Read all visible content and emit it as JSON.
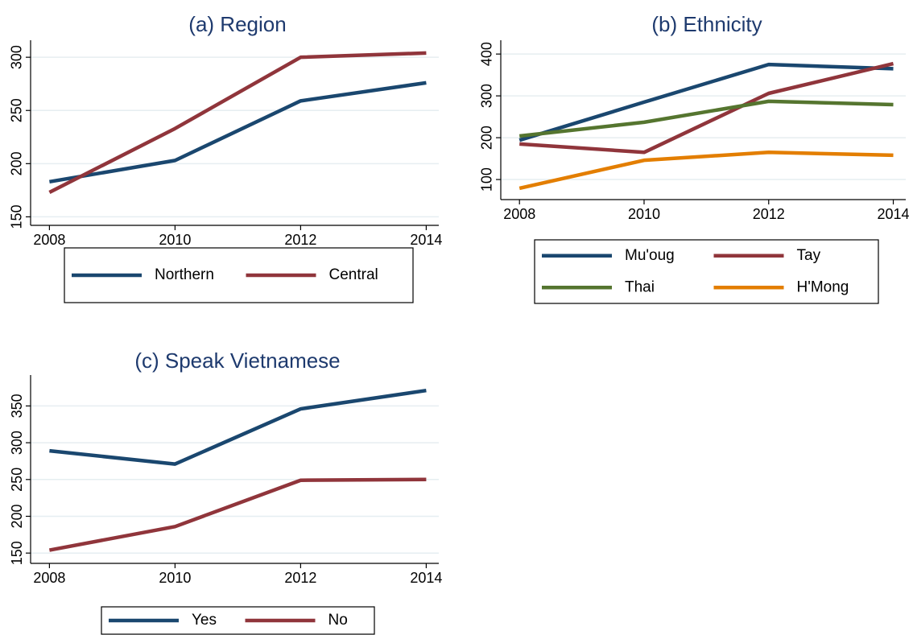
{
  "chart_data": [
    {
      "type": "line",
      "title": "(a) Region",
      "x": [
        2008,
        2010,
        2012,
        2014
      ],
      "series": [
        {
          "name": "Northern",
          "color": "#1a476f",
          "values": [
            183,
            203,
            259,
            276
          ]
        },
        {
          "name": "Central",
          "color": "#90353b",
          "values": [
            173,
            233,
            300,
            304
          ]
        }
      ],
      "xlim": [
        2007.7,
        2014.2
      ],
      "xticks": [
        2008,
        2010,
        2012,
        2014
      ],
      "ylim": [
        142,
        316
      ],
      "yticks": [
        150,
        200,
        250,
        300
      ],
      "grid": true
    },
    {
      "type": "line",
      "title": "(b) Ethnicity",
      "x": [
        2008,
        2010,
        2012,
        2014
      ],
      "series": [
        {
          "name": "Mu'oug",
          "color": "#1a476f",
          "values": [
            194,
            285,
            375,
            365
          ]
        },
        {
          "name": "Tay",
          "color": "#90353b",
          "values": [
            185,
            165,
            306,
            377
          ]
        },
        {
          "name": "Thai",
          "color": "#55752f",
          "values": [
            204,
            237,
            287,
            279
          ]
        },
        {
          "name": "H'Mong",
          "color": "#e37e00",
          "values": [
            79,
            146,
            165,
            158
          ]
        }
      ],
      "xlim": [
        2007.7,
        2014.2
      ],
      "xticks": [
        2008,
        2010,
        2012,
        2014
      ],
      "ylim": [
        52,
        433
      ],
      "yticks": [
        100,
        200,
        300,
        400
      ],
      "grid": true
    },
    {
      "type": "line",
      "title": "(c) Speak Vietnamese",
      "x": [
        2008,
        2010,
        2012,
        2014
      ],
      "series": [
        {
          "name": "Yes",
          "color": "#1a476f",
          "values": [
            289,
            271,
            346,
            371
          ]
        },
        {
          "name": "No",
          "color": "#90353b",
          "values": [
            154,
            186,
            249,
            250
          ]
        }
      ],
      "xlim": [
        2007.7,
        2014.2
      ],
      "xticks": [
        2008,
        2010,
        2012,
        2014
      ],
      "ylim": [
        136,
        392
      ],
      "yticks": [
        150,
        200,
        250,
        300,
        350
      ],
      "grid": true
    }
  ]
}
